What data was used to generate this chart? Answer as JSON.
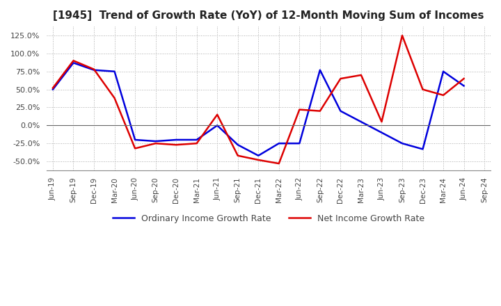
{
  "title": "[1945]  Trend of Growth Rate (YoY) of 12-Month Moving Sum of Incomes",
  "x_labels": [
    "Jun-19",
    "Sep-19",
    "Dec-19",
    "Mar-20",
    "Jun-20",
    "Sep-20",
    "Dec-20",
    "Mar-21",
    "Jun-21",
    "Sep-21",
    "Dec-21",
    "Mar-22",
    "Jun-22",
    "Sep-22",
    "Dec-22",
    "Mar-23",
    "Jun-23",
    "Sep-23",
    "Dec-23",
    "Mar-24",
    "Jun-24",
    "Sep-24"
  ],
  "ordinary_income": [
    50,
    87,
    77,
    75,
    -20,
    -22,
    -20,
    -20,
    0,
    -27,
    -42,
    -25,
    -25,
    77,
    20,
    5,
    -10,
    -25,
    -33,
    75,
    55,
    null
  ],
  "net_income": [
    52,
    90,
    78,
    38,
    -32,
    -25,
    -27,
    -25,
    15,
    -42,
    -48,
    -53,
    22,
    20,
    65,
    70,
    5,
    125,
    50,
    42,
    65,
    null
  ],
  "ordinary_color": "#0000dd",
  "net_color": "#dd0000",
  "ylim": [
    -62.5,
    137.5
  ],
  "yticks": [
    -50,
    -25,
    0,
    25,
    50,
    75,
    100,
    125
  ],
  "background_color": "#ffffff",
  "grid_color": "#aaaaaa",
  "legend_ordinary": "Ordinary Income Growth Rate",
  "legend_net": "Net Income Growth Rate"
}
